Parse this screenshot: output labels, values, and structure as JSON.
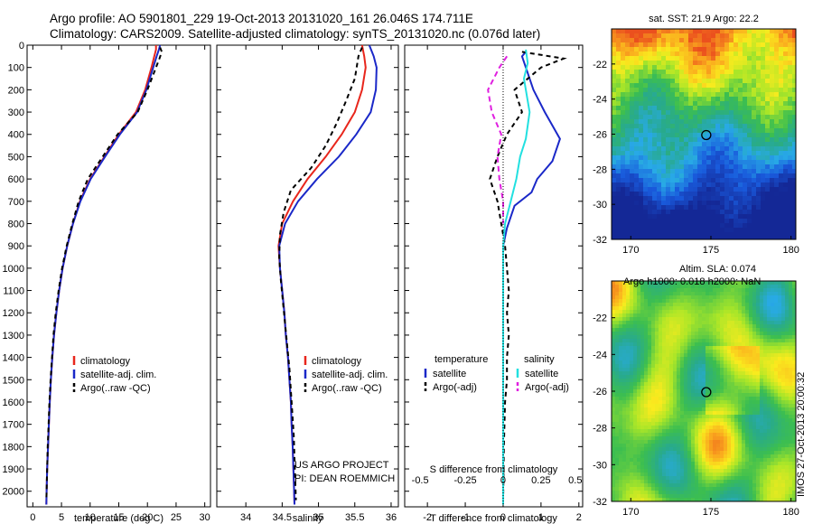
{
  "header": {
    "line1": "Argo profile: AO 5901801_229 19-Oct-2013 20131020_161 26.046S 174.711E",
    "line2": "Climatology: CARS2009. Satellite-adjusted climatology: synTS_20131020.nc (0.076d later)"
  },
  "colors": {
    "climatology": "#e8261c",
    "satellite": "#1a28c8",
    "argo": "#000000",
    "sat_salinity": "#22e0e0",
    "argo_salinity": "#e020e0"
  },
  "chart_data": [
    {
      "type": "line",
      "id": "temperature",
      "xlabel": "temperature (deg C)",
      "ylabel": "",
      "xlim": [
        -1,
        31
      ],
      "ylim": [
        2070,
        0
      ],
      "xticks": [
        0,
        5,
        10,
        15,
        20,
        25,
        30
      ],
      "yticks": [
        0,
        100,
        200,
        300,
        400,
        500,
        600,
        700,
        800,
        900,
        1000,
        1100,
        1200,
        1300,
        1400,
        1500,
        1600,
        1700,
        1800,
        1900,
        2000
      ],
      "legend": [
        "climatology",
        "satellite-adj. clim.",
        "Argo(..raw -QC)"
      ],
      "series": [
        {
          "name": "climatology",
          "color": "#e8261c",
          "dash": "",
          "points": [
            [
              21.5,
              0
            ],
            [
              21.5,
              20
            ],
            [
              21.2,
              50
            ],
            [
              20.7,
              100
            ],
            [
              19.6,
              200
            ],
            [
              18,
              300
            ],
            [
              15,
              400
            ],
            [
              12.5,
              500
            ],
            [
              10,
              600
            ],
            [
              8.2,
              700
            ],
            [
              7,
              800
            ],
            [
              6,
              900
            ],
            [
              5.2,
              1000
            ],
            [
              4.6,
              1100
            ],
            [
              4.1,
              1200
            ],
            [
              3.7,
              1300
            ],
            [
              3.4,
              1400
            ],
            [
              3.15,
              1500
            ],
            [
              2.95,
              1600
            ],
            [
              2.8,
              1700
            ],
            [
              2.65,
              1800
            ],
            [
              2.5,
              1900
            ],
            [
              2.4,
              2000
            ],
            [
              2.35,
              2060
            ]
          ]
        },
        {
          "name": "satellite-adj. clim.",
          "color": "#1a28c8",
          "dash": "",
          "points": [
            [
              22.2,
              0
            ],
            [
              22,
              20
            ],
            [
              21.6,
              50
            ],
            [
              21,
              100
            ],
            [
              19.8,
              200
            ],
            [
              18.2,
              300
            ],
            [
              15.2,
              400
            ],
            [
              12.6,
              500
            ],
            [
              10.1,
              600
            ],
            [
              8.3,
              700
            ],
            [
              7,
              800
            ],
            [
              6,
              900
            ],
            [
              5.2,
              1000
            ],
            [
              4.6,
              1100
            ],
            [
              4.1,
              1200
            ],
            [
              3.7,
              1300
            ],
            [
              3.4,
              1400
            ],
            [
              3.15,
              1500
            ],
            [
              2.95,
              1600
            ],
            [
              2.8,
              1700
            ],
            [
              2.65,
              1800
            ],
            [
              2.5,
              1900
            ],
            [
              2.4,
              2000
            ],
            [
              2.35,
              2060
            ]
          ]
        },
        {
          "name": "Argo(..raw -QC)",
          "color": "#000000",
          "dash": "5,4",
          "points": [
            [
              22.2,
              10
            ],
            [
              22.5,
              30
            ],
            [
              22.1,
              60
            ],
            [
              21.5,
              100
            ],
            [
              20,
              200
            ],
            [
              18.3,
              300
            ],
            [
              14.8,
              400
            ],
            [
              12.2,
              500
            ],
            [
              9.6,
              600
            ],
            [
              8,
              700
            ],
            [
              6.9,
              800
            ],
            [
              5.9,
              900
            ],
            [
              5.1,
              1000
            ],
            [
              4.5,
              1100
            ],
            [
              4,
              1200
            ],
            [
              3.6,
              1300
            ],
            [
              3.35,
              1400
            ],
            [
              3.1,
              1500
            ],
            [
              2.9,
              1600
            ],
            [
              2.75,
              1700
            ],
            [
              2.6,
              1800
            ],
            [
              2.5,
              1900
            ],
            [
              2.4,
              2000
            ],
            [
              2.35,
              2040
            ]
          ]
        }
      ]
    },
    {
      "type": "line",
      "id": "salinity",
      "xlabel": "salinity",
      "ylabel": "",
      "xlim": [
        33.6,
        36.1
      ],
      "ylim": [
        2070,
        0
      ],
      "xticks": [
        34,
        34.5,
        35,
        35.5,
        36
      ],
      "legend": [
        "climatology",
        "satellite-adj. clim.",
        "Argo(..raw -QC)"
      ],
      "annotation": [
        "US ARGO PROJECT",
        "PI: DEAN ROEMMICH"
      ],
      "series": [
        {
          "name": "climatology",
          "color": "#e8261c",
          "dash": "",
          "points": [
            [
              35.6,
              0
            ],
            [
              35.63,
              50
            ],
            [
              35.65,
              100
            ],
            [
              35.6,
              200
            ],
            [
              35.5,
              300
            ],
            [
              35.32,
              400
            ],
            [
              35.1,
              500
            ],
            [
              34.85,
              600
            ],
            [
              34.65,
              700
            ],
            [
              34.5,
              800
            ],
            [
              34.45,
              900
            ],
            [
              34.47,
              1000
            ],
            [
              34.5,
              1100
            ],
            [
              34.53,
              1200
            ],
            [
              34.55,
              1300
            ],
            [
              34.58,
              1400
            ],
            [
              34.6,
              1500
            ],
            [
              34.62,
              1600
            ],
            [
              34.63,
              1700
            ],
            [
              34.645,
              1800
            ],
            [
              34.655,
              1900
            ],
            [
              34.665,
              2000
            ],
            [
              34.67,
              2060
            ]
          ]
        },
        {
          "name": "satellite-adj. clim.",
          "color": "#1a28c8",
          "dash": "",
          "points": [
            [
              35.7,
              0
            ],
            [
              35.76,
              50
            ],
            [
              35.8,
              100
            ],
            [
              35.79,
              200
            ],
            [
              35.72,
              300
            ],
            [
              35.52,
              400
            ],
            [
              35.28,
              500
            ],
            [
              34.98,
              600
            ],
            [
              34.72,
              700
            ],
            [
              34.54,
              800
            ],
            [
              34.46,
              900
            ],
            [
              34.47,
              1000
            ],
            [
              34.5,
              1100
            ],
            [
              34.53,
              1200
            ],
            [
              34.55,
              1300
            ],
            [
              34.58,
              1400
            ],
            [
              34.6,
              1500
            ],
            [
              34.62,
              1600
            ],
            [
              34.63,
              1700
            ],
            [
              34.645,
              1800
            ],
            [
              34.655,
              1900
            ],
            [
              34.665,
              2000
            ],
            [
              34.67,
              2060
            ]
          ]
        },
        {
          "name": "Argo(..raw -QC)",
          "color": "#000000",
          "dash": "5,4",
          "points": [
            [
              35.6,
              10
            ],
            [
              35.55,
              50
            ],
            [
              35.5,
              150
            ],
            [
              35.38,
              250
            ],
            [
              35.25,
              350
            ],
            [
              35.1,
              450
            ],
            [
              34.9,
              550
            ],
            [
              34.62,
              650
            ],
            [
              34.52,
              750
            ],
            [
              34.47,
              850
            ],
            [
              34.46,
              950
            ],
            [
              34.48,
              1050
            ],
            [
              34.51,
              1150
            ],
            [
              34.54,
              1250
            ],
            [
              34.57,
              1350
            ],
            [
              34.6,
              1450
            ],
            [
              34.62,
              1550
            ],
            [
              34.64,
              1650
            ],
            [
              34.66,
              1750
            ],
            [
              34.67,
              1850
            ],
            [
              34.68,
              1950
            ],
            [
              34.69,
              2040
            ]
          ]
        }
      ]
    },
    {
      "type": "line",
      "id": "difference",
      "xlabel": "T difference from climatology",
      "xlabel_top": "S difference from climatology",
      "xlim": [
        -2.6,
        2.1
      ],
      "ylim": [
        2070,
        0
      ],
      "xticks": [
        -2,
        -1,
        0,
        1,
        2
      ],
      "xticks_s": [
        "-0.5",
        "-0.25",
        "0",
        "0.25",
        "0.5"
      ],
      "legend_heads": [
        "temperature",
        "salinity"
      ],
      "legend": [
        "satellite",
        "Argo(-adj)",
        "satellite",
        "Argo(-adj)"
      ],
      "series": [
        {
          "name": "satellite",
          "color": "#1a28c8",
          "dash": "",
          "points": [
            [
              0.6,
              30
            ],
            [
              0.5,
              50
            ],
            [
              0.6,
              100
            ],
            [
              0.8,
              200
            ],
            [
              1.1,
              300
            ],
            [
              1.5,
              420
            ],
            [
              1.3,
              520
            ],
            [
              0.9,
              600
            ],
            [
              0.75,
              660
            ],
            [
              0.3,
              720
            ],
            [
              0.1,
              820
            ],
            [
              0,
              900
            ],
            [
              0,
              2060
            ]
          ]
        },
        {
          "name": "Argo(-adj)",
          "color": "#000000",
          "dash": "5,4",
          "points": [
            [
              0.5,
              30
            ],
            [
              1.6,
              60
            ],
            [
              1,
              100
            ],
            [
              0.3,
              200
            ],
            [
              0.5,
              300
            ],
            [
              0.1,
              400
            ],
            [
              -0.15,
              500
            ],
            [
              -0.35,
              600
            ],
            [
              -0.15,
              700
            ],
            [
              -0.05,
              800
            ],
            [
              0.05,
              900
            ],
            [
              0.1,
              1000
            ],
            [
              0.15,
              1100
            ],
            [
              0.1,
              1200
            ],
            [
              0.15,
              1300
            ],
            [
              0.1,
              1400
            ],
            [
              0.1,
              1500
            ],
            [
              0.05,
              1600
            ],
            [
              0.02,
              1800
            ],
            [
              0,
              2040
            ]
          ]
        },
        {
          "name": "satellite",
          "color": "#22e0e0",
          "dash": "",
          "points": [
            [
              0.6,
              20
            ],
            [
              0.65,
              80
            ],
            [
              0.55,
              150
            ],
            [
              0.7,
              300
            ],
            [
              0.6,
              420
            ],
            [
              0.45,
              500
            ],
            [
              0.35,
              600
            ],
            [
              0.2,
              700
            ],
            [
              0.05,
              800
            ],
            [
              0,
              900
            ],
            [
              0,
              2060
            ]
          ]
        },
        {
          "name": "Argo(-adj)",
          "color": "#e020e0",
          "dash": "6,4",
          "points": [
            [
              0.1,
              50
            ],
            [
              -0.1,
              100
            ],
            [
              -0.4,
              200
            ],
            [
              -0.3,
              300
            ],
            [
              -0.05,
              400
            ],
            [
              -0.15,
              500
            ],
            [
              -0.1,
              600
            ],
            [
              0,
              700
            ],
            [
              0,
              800
            ]
          ]
        }
      ]
    },
    {
      "type": "heatmap",
      "id": "sst_map",
      "title": "sat. SST: 21.9 Argo: 22.2",
      "xlim": [
        168.8,
        180.3
      ],
      "ylim": [
        -32,
        -20
      ],
      "xticks": [
        170,
        175,
        180
      ],
      "yticks": [
        -32,
        -30,
        -28,
        -26,
        -24,
        -22
      ],
      "marker": [
        174.71,
        -26.05
      ]
    },
    {
      "type": "heatmap",
      "id": "sla_map",
      "title": "Altim. SLA: 0.074",
      "subtitle": "Argo h1000: 0.018 h2000: NaN",
      "xlim": [
        168.8,
        180.3
      ],
      "ylim": [
        -32,
        -20
      ],
      "xticks": [
        170,
        175,
        180
      ],
      "yticks": [
        -32,
        -30,
        -28,
        -26,
        -24,
        -22
      ],
      "marker": [
        174.71,
        -26.05
      ]
    }
  ],
  "footer": {
    "imos": "IMOS 27-Oct-2013 20:00:32"
  }
}
